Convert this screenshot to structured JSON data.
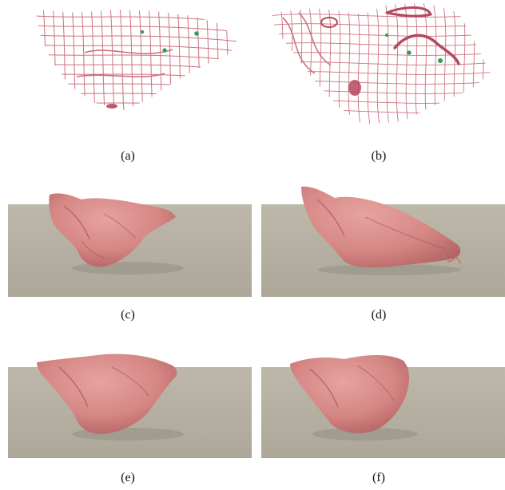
{
  "figure": {
    "panels": [
      {
        "id": "a",
        "caption": "(a)",
        "content": "wireframe mesh"
      },
      {
        "id": "b",
        "caption": "(b)",
        "content": "deformed wireframe mesh"
      },
      {
        "id": "c",
        "caption": "(c)",
        "content": "rendered tissue on floor"
      },
      {
        "id": "d",
        "caption": "(d)",
        "content": "rendered tissue stretched on floor"
      },
      {
        "id": "e",
        "caption": "(e)",
        "content": "rendered tissue on floor"
      },
      {
        "id": "f",
        "caption": "(f)",
        "content": "rendered tissue on floor"
      }
    ],
    "colors": {
      "mesh_line": "#c45a6a",
      "marker": "#2f9e4f",
      "tissue": "#d98a8a",
      "floor": "#b9b4a6",
      "background": "#ffffff"
    }
  }
}
